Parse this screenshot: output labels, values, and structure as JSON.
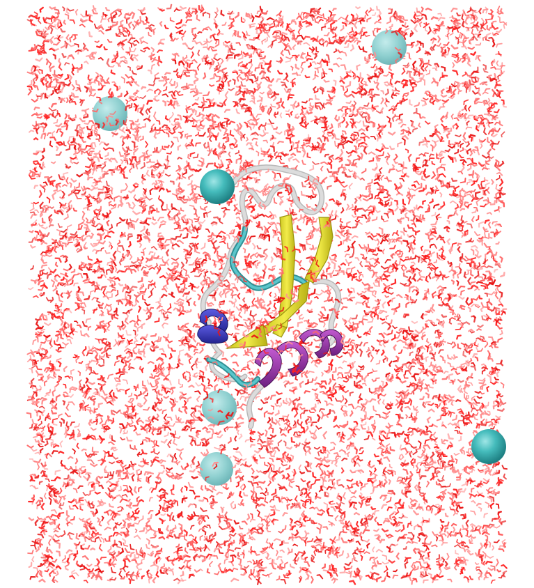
{
  "scene": {
    "kind": "molecular-dynamics-render",
    "background": "#ffffff",
    "water": {
      "colors": [
        "#ff2222",
        "#ff6b6b",
        "#e81616",
        "#ff9090"
      ],
      "density": "dense"
    },
    "ions": {
      "color": "#3fb8b8",
      "count": 6
    },
    "protein": {
      "coil_color": "#d8d8d8",
      "turn_color": "#4fb3b8",
      "strand_color": "#e8e23a",
      "helix_color": "#9a3aa8",
      "helix310_color": "#3a3ac8"
    }
  }
}
